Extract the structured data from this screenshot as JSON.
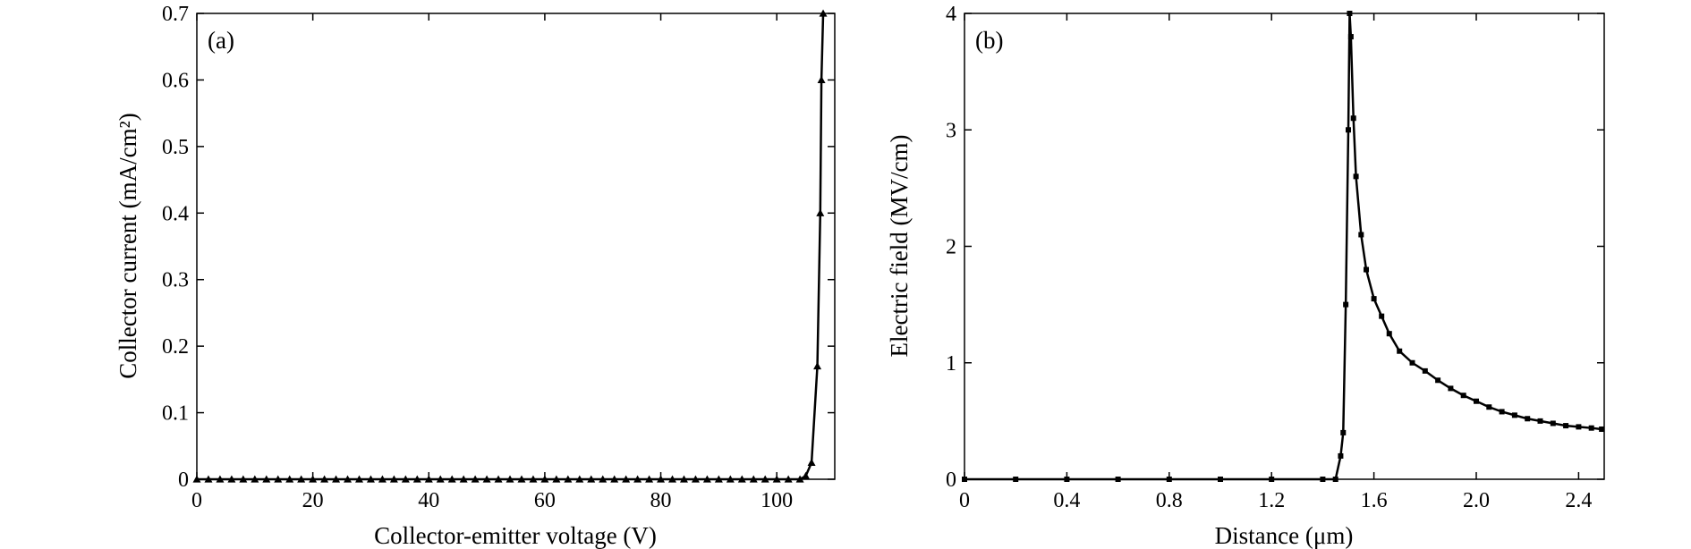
{
  "chart_data": [
    {
      "panel": "(a)",
      "type": "line",
      "xlabel": "Collector-emitter voltage (V)",
      "ylabel": "Collector current (mA/cm²)",
      "xlim": [
        0,
        110
      ],
      "ylim": [
        0,
        0.7
      ],
      "xticks": [
        0,
        20,
        40,
        60,
        80,
        100
      ],
      "xtick_labels": [
        "0",
        "20",
        "40",
        "60",
        "80",
        "100"
      ],
      "yticks": [
        0,
        0.1,
        0.2,
        0.3,
        0.4,
        0.5,
        0.6,
        0.7
      ],
      "ytick_labels": [
        "0",
        "0.1",
        "0.2",
        "0.3",
        "0.4",
        "0.5",
        "0.6",
        "0.7"
      ],
      "grid": false,
      "marker": "triangle",
      "series": [
        {
          "x": [
            0,
            2,
            4,
            6,
            8,
            10,
            12,
            14,
            16,
            18,
            20,
            22,
            24,
            26,
            28,
            30,
            32,
            34,
            36,
            38,
            40,
            42,
            44,
            46,
            48,
            50,
            52,
            54,
            56,
            58,
            60,
            62,
            64,
            66,
            68,
            70,
            72,
            74,
            76,
            78,
            80,
            82,
            84,
            86,
            88,
            90,
            92,
            94,
            96,
            98,
            100,
            102,
            104,
            105,
            106,
            107,
            107.5,
            107.7,
            108
          ],
          "y": [
            0,
            0,
            0,
            0,
            0,
            0,
            0,
            0,
            0,
            0,
            0,
            0,
            0,
            0,
            0,
            0,
            0,
            0,
            0,
            0,
            0,
            0,
            0,
            0,
            0,
            0,
            0,
            0,
            0,
            0,
            0,
            0,
            0,
            0,
            0,
            0,
            0,
            0,
            0,
            0,
            0,
            0,
            0,
            0,
            0,
            0,
            0,
            0,
            0,
            0,
            0,
            0,
            0,
            0.005,
            0.025,
            0.17,
            0.4,
            0.6,
            0.7
          ]
        }
      ]
    },
    {
      "panel": "(b)",
      "type": "line",
      "xlabel": "Distance (μm)",
      "ylabel": "Electric field (MV/cm)",
      "xlim": [
        0,
        2.5
      ],
      "ylim": [
        0,
        4
      ],
      "xticks": [
        0,
        0.4,
        0.8,
        1.2,
        1.6,
        2.0,
        2.4
      ],
      "xtick_labels": [
        "0",
        "0.4",
        "0.8",
        "1.2",
        "1.6",
        "2.0",
        "2.4"
      ],
      "yticks": [
        0,
        1,
        2,
        3,
        4
      ],
      "ytick_labels": [
        "0",
        "1",
        "2",
        "3",
        "4"
      ],
      "grid": false,
      "marker": "square",
      "series": [
        {
          "x": [
            0,
            0.2,
            0.4,
            0.6,
            0.8,
            1.0,
            1.2,
            1.4,
            1.45,
            1.47,
            1.48,
            1.49,
            1.5,
            1.505,
            1.51,
            1.52,
            1.53,
            1.55,
            1.57,
            1.6,
            1.63,
            1.66,
            1.7,
            1.75,
            1.8,
            1.85,
            1.9,
            1.95,
            2.0,
            2.05,
            2.1,
            2.15,
            2.2,
            2.25,
            2.3,
            2.35,
            2.4,
            2.45,
            2.49
          ],
          "y": [
            0,
            0,
            0,
            0,
            0,
            0,
            0,
            0,
            0,
            0.2,
            0.4,
            1.5,
            3.0,
            4.0,
            3.8,
            3.1,
            2.6,
            2.1,
            1.8,
            1.55,
            1.4,
            1.25,
            1.1,
            1.0,
            0.93,
            0.85,
            0.78,
            0.72,
            0.67,
            0.62,
            0.58,
            0.55,
            0.52,
            0.5,
            0.48,
            0.46,
            0.45,
            0.44,
            0.43
          ]
        }
      ]
    }
  ]
}
